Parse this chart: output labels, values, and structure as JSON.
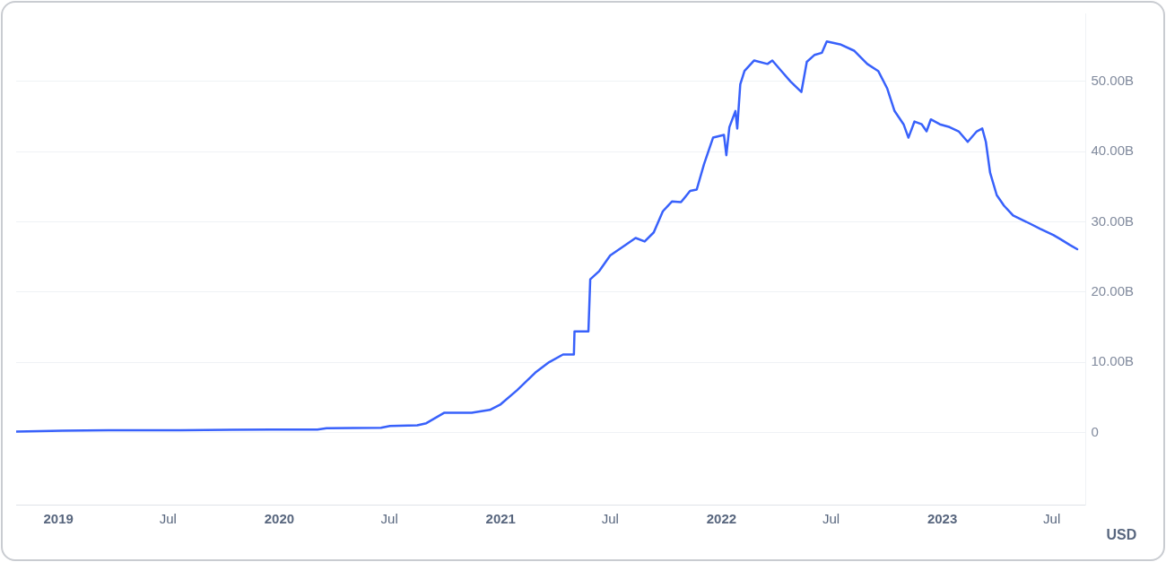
{
  "chart_data": {
    "type": "line",
    "ylabel": "USD",
    "legend": false,
    "grid": "y",
    "marker": "none",
    "line_style": "solid",
    "xlim": [
      "2018-10-23",
      "2023-08-26"
    ],
    "ylim": [
      -10.3,
      59.7
    ],
    "xticks": [
      {
        "value": "2019-01-01",
        "label": "2019"
      },
      {
        "value": "2019-07-01",
        "label": "Jul"
      },
      {
        "value": "2020-01-01",
        "label": "2020"
      },
      {
        "value": "2020-07-01",
        "label": "Jul"
      },
      {
        "value": "2021-01-01",
        "label": "2021"
      },
      {
        "value": "2021-07-01",
        "label": "Jul"
      },
      {
        "value": "2022-01-01",
        "label": "2022"
      },
      {
        "value": "2022-07-01",
        "label": "Jul"
      },
      {
        "value": "2023-01-01",
        "label": "2023"
      },
      {
        "value": "2023-07-01",
        "label": "Jul"
      }
    ],
    "yticks": [
      {
        "value": 0,
        "label": "0"
      },
      {
        "value": 10,
        "label": "10.00B"
      },
      {
        "value": 20,
        "label": "20.00B"
      },
      {
        "value": 30,
        "label": "30.00B"
      },
      {
        "value": 40,
        "label": "40.00B"
      },
      {
        "value": 50,
        "label": "50.00B"
      }
    ],
    "x": [
      "2018-10-23",
      "2019-01-08",
      "2019-03-24",
      "2019-07-22",
      "2019-12-20",
      "2020-03-04",
      "2020-03-19",
      "2020-06-17",
      "2020-07-02",
      "2020-08-16",
      "2020-08-31",
      "2020-09-30",
      "2020-11-14",
      "2020-12-14",
      "2021-01-01",
      "2021-01-28",
      "2021-02-27",
      "2021-03-22",
      "2021-04-14",
      "2021-05-02",
      "2021-05-03",
      "2021-05-26",
      "2021-05-29",
      "2021-06-13",
      "2021-07-01",
      "2021-07-28",
      "2021-08-12",
      "2021-08-27",
      "2021-09-11",
      "2021-09-26",
      "2021-10-11",
      "2021-10-26",
      "2021-11-10",
      "2021-11-21",
      "2021-12-03",
      "2021-12-18",
      "2022-01-05",
      "2022-01-09",
      "2022-01-14",
      "2022-01-24",
      "2022-01-27",
      "2022-02-01",
      "2022-02-08",
      "2022-02-24",
      "2022-03-18",
      "2022-03-26",
      "2022-04-10",
      "2022-04-25",
      "2022-05-13",
      "2022-05-22",
      "2022-06-04",
      "2022-06-16",
      "2022-06-24",
      "2022-07-16",
      "2022-08-08",
      "2022-08-30",
      "2022-09-17",
      "2022-10-02",
      "2022-10-14",
      "2022-10-29",
      "2022-11-06",
      "2022-11-16",
      "2022-11-28",
      "2022-12-06",
      "2022-12-13",
      "2022-12-28",
      "2023-01-13",
      "2023-01-28",
      "2023-02-12",
      "2023-02-27",
      "2023-03-08",
      "2023-03-14",
      "2023-03-21",
      "2023-04-01",
      "2023-04-13",
      "2023-04-28",
      "2023-05-20",
      "2023-06-12",
      "2023-06-27",
      "2023-07-04",
      "2023-07-16",
      "2023-07-31",
      "2023-08-12"
    ],
    "series": [
      {
        "color": "#3861fb",
        "values": [
          0.1,
          0.25,
          0.3,
          0.3,
          0.4,
          0.4,
          0.6,
          0.65,
          0.9,
          1.0,
          1.3,
          2.8,
          2.8,
          3.2,
          4.0,
          6.0,
          8.5,
          10,
          11.1,
          11.1,
          14.4,
          14.4,
          21.8,
          23,
          25.2,
          26.8,
          27.7,
          27.2,
          28.5,
          31.5,
          32.9,
          32.8,
          34.4,
          34.6,
          38.2,
          42,
          42.4,
          39.5,
          43.5,
          45.8,
          43.3,
          49.6,
          51.5,
          53,
          52.5,
          53,
          51.5,
          50,
          48.5,
          52.8,
          53.8,
          54.1,
          55.7,
          55.3,
          54.4,
          52.5,
          51.5,
          49,
          45.8,
          43.9,
          42,
          44.3,
          43.9,
          42.9,
          44.6,
          43.9,
          43.5,
          42.9,
          41.4,
          42.9,
          43.3,
          41.4,
          37,
          33.8,
          32.3,
          30.9,
          30,
          29,
          28.4,
          28.1,
          27.5,
          26.7,
          26.1
        ]
      }
    ]
  }
}
